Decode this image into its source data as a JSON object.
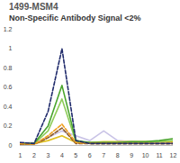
{
  "chart_data": {
    "type": "line",
    "title": "1499-MSM4",
    "subtitle": "Non-Specific Antibody Signal <2%",
    "x": [
      1,
      2,
      3,
      4,
      5,
      6,
      7,
      8,
      9,
      10,
      11,
      12
    ],
    "xlim": [
      1,
      12
    ],
    "xticks": [
      1,
      2,
      3,
      4,
      5,
      6,
      7,
      8,
      9,
      10,
      11,
      12
    ],
    "ylim": [
      0,
      1.2
    ],
    "yticks": [
      0,
      0.2,
      0.4,
      0.6,
      0.8,
      1,
      1.2
    ],
    "grid": false,
    "series": [
      {
        "color": "#c9c3e6",
        "line_style": "solid",
        "values": [
          0.03,
          0.03,
          0.08,
          0.15,
          0.1,
          0.05,
          0.15,
          0.05,
          0.04,
          0.03,
          0.03,
          0.03
        ]
      },
      {
        "color": "#e0c020",
        "line_style": "solid",
        "values": [
          0.02,
          0.02,
          0.05,
          0.1,
          0.03,
          0.03,
          0.04,
          0.04,
          0.04,
          0.04,
          0.04,
          0.04
        ]
      },
      {
        "color": "#8fcc5a",
        "line_style": "solid",
        "values": [
          0.02,
          0.02,
          0.15,
          0.48,
          0.04,
          0.03,
          0.03,
          0.03,
          0.03,
          0.03,
          0.04,
          0.05
        ]
      },
      {
        "color": "#4aa52e",
        "line_style": "solid",
        "values": [
          0.02,
          0.02,
          0.2,
          0.62,
          0.05,
          0.03,
          0.03,
          0.03,
          0.04,
          0.04,
          0.05,
          0.07
        ]
      },
      {
        "color": "#8a5a2b",
        "line_style": "dashed",
        "values": [
          0.01,
          0.01,
          0.08,
          0.18,
          0.02,
          0.02,
          0.02,
          0.02,
          0.02,
          0.02,
          0.02,
          0.02
        ]
      },
      {
        "color": "#f0a020",
        "line_style": "dashed",
        "values": [
          0.02,
          0.01,
          0.1,
          0.22,
          0.03,
          0.02,
          0.02,
          0.02,
          0.02,
          0.02,
          0.02,
          0.02
        ]
      },
      {
        "color": "#1f2a6b",
        "line_style": "dashed",
        "values": [
          0.03,
          0.02,
          0.35,
          1.0,
          0.05,
          0.02,
          0.02,
          0.02,
          0.02,
          0.02,
          0.02,
          0.02
        ]
      }
    ]
  }
}
